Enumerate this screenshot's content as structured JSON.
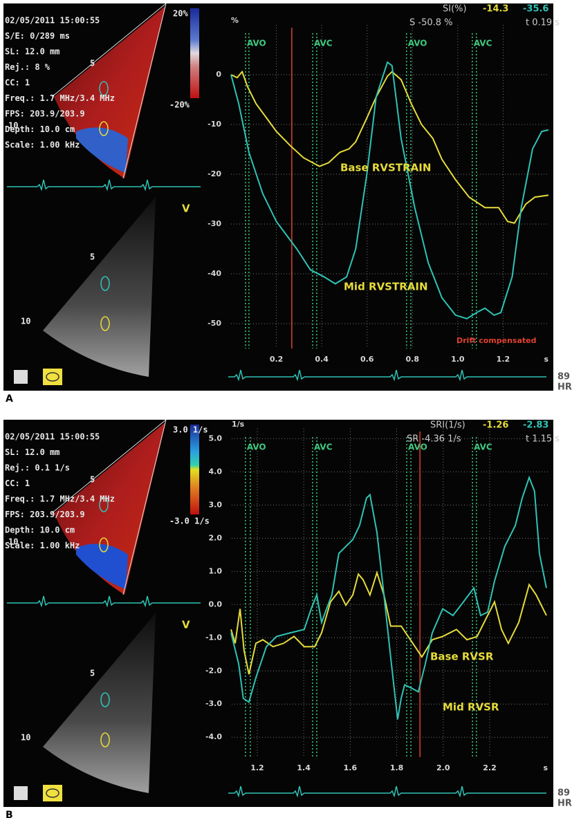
{
  "chart_data": [
    {
      "type": "line",
      "readout_title": "SI(%)",
      "readout_values": [
        -14.3,
        -35.6
      ],
      "readout_peak": "S -50.8 %",
      "readout_time": "t 0.19 s",
      "y_unit": "%",
      "x_unit": "s",
      "xlim": [
        0,
        1.4
      ],
      "ylim": [
        -55,
        10
      ],
      "xticks": [
        0.2,
        0.4,
        0.6,
        0.8,
        {
          "value": 1,
          "label": "1.0"
        },
        1.2
      ],
      "yticks": [
        0,
        -10,
        -20,
        -30,
        -40,
        -50
      ],
      "grid": true,
      "events": [
        {
          "label": "AVO",
          "x": [
            0.064,
            0.079
          ]
        },
        {
          "label": "AVC",
          "x": [
            0.36,
            0.378
          ]
        },
        {
          "label": "AVO",
          "x": [
            0.774,
            0.793
          ]
        },
        {
          "label": "AVC",
          "x": [
            1.064,
            1.082
          ]
        }
      ],
      "event_color": "#3fc880",
      "cursor_x": 0.268,
      "cursor_color": "#e04030",
      "annotations": [
        "Drift compensated"
      ],
      "series": [
        {
          "name": "Base RVSTRAIN",
          "color": "#e6dc3a",
          "x": [
            0,
            0.027,
            0.049,
            0.073,
            0.11,
            0.155,
            0.2,
            0.26,
            0.32,
            0.39,
            0.43,
            0.48,
            0.52,
            0.55,
            0.6,
            0.64,
            0.69,
            0.71,
            0.75,
            0.795,
            0.84,
            0.89,
            0.93,
            0.99,
            1.05,
            1.12,
            1.18,
            1.22,
            1.25,
            1.3,
            1.34,
            1.4
          ],
          "values": [
            0,
            -0.6,
            0.6,
            -2.4,
            -5.8,
            -8.6,
            -11.4,
            -14.2,
            -16.7,
            -18.4,
            -17.7,
            -15.6,
            -14.9,
            -13.5,
            -8.6,
            -4.5,
            -0.3,
            0.6,
            -1.0,
            -5.8,
            -10,
            -12.8,
            -17,
            -21.1,
            -24.6,
            -26.7,
            -26.7,
            -29.5,
            -29.8,
            -26,
            -24.6,
            -24.2
          ]
        },
        {
          "name": "Mid RVSTRAIN",
          "color": "#2ec4b6",
          "x": [
            0,
            0.034,
            0.079,
            0.14,
            0.2,
            0.29,
            0.35,
            0.41,
            0.46,
            0.51,
            0.55,
            0.6,
            0.64,
            0.69,
            0.71,
            0.75,
            0.81,
            0.87,
            0.93,
            0.99,
            1.04,
            1.09,
            1.12,
            1.16,
            1.19,
            1.24,
            1.28,
            1.33,
            1.37,
            1.4
          ],
          "values": [
            0,
            -5.8,
            -15.6,
            -23.9,
            -29.5,
            -35,
            -39.2,
            -40.6,
            -42,
            -40.6,
            -35,
            -19.7,
            -4.5,
            2.5,
            1.8,
            -12.8,
            -26.7,
            -37.8,
            -44.8,
            -48.3,
            -49,
            -47.6,
            -46.9,
            -48.3,
            -47.8,
            -40.6,
            -26.7,
            -14.9,
            -11.4,
            -11.1
          ]
        }
      ]
    },
    {
      "type": "line",
      "readout_title": "SRI(1/s)",
      "readout_values": [
        -1.26,
        -2.83
      ],
      "readout_peak": "SR -4.36 1/s",
      "readout_time": "t 1.15 s",
      "y_unit": "1/s",
      "x_unit": "s",
      "xlim": [
        1.09,
        2.45
      ],
      "ylim": [
        -4.6,
        5.3
      ],
      "xticks": [
        1.2,
        1.4,
        1.6,
        1.8,
        {
          "value": 2,
          "label": "2.0"
        },
        2.2
      ],
      "yticks": [
        {
          "value": 5,
          "label": "5.0"
        },
        {
          "value": 4,
          "label": "4.0"
        },
        {
          "value": 3,
          "label": "3.0"
        },
        {
          "value": 2,
          "label": "2.0"
        },
        {
          "value": 1,
          "label": "1.0"
        },
        {
          "value": 0,
          "label": "0.0"
        },
        {
          "value": -1,
          "label": "-1.0"
        },
        {
          "value": -2,
          "label": "-2.0"
        },
        {
          "value": -3,
          "label": "-3.0"
        },
        {
          "value": -4,
          "label": "-4.0"
        }
      ],
      "grid": true,
      "events": [
        {
          "label": "AVO",
          "x": [
            1.149,
            1.17
          ]
        },
        {
          "label": "AVC",
          "x": [
            1.438,
            1.456
          ]
        },
        {
          "label": "AVO",
          "x": [
            1.843,
            1.861
          ]
        },
        {
          "label": "AVC",
          "x": [
            2.126,
            2.143
          ]
        }
      ],
      "event_color": "#3fc880",
      "cursor_x": 1.9,
      "cursor_color": "#e04030",
      "annotations": [],
      "series": [
        {
          "name": "Base RVSR",
          "color": "#e6dc3a",
          "x": [
            1.087,
            1.105,
            1.126,
            1.143,
            1.164,
            1.194,
            1.224,
            1.268,
            1.313,
            1.358,
            1.402,
            1.447,
            1.477,
            1.515,
            1.551,
            1.581,
            1.611,
            1.635,
            1.655,
            1.685,
            1.715,
            1.745,
            1.774,
            1.819,
            1.879,
            1.908,
            1.953,
            1.998,
            2.057,
            2.102,
            2.146,
            2.191,
            2.221,
            2.251,
            2.28,
            2.325,
            2.37,
            2.4,
            2.444
          ],
          "values": [
            -0.75,
            -1.17,
            -0.13,
            -1.38,
            -2.1,
            -1.17,
            -1.06,
            -1.27,
            -1.17,
            -0.96,
            -1.27,
            -1.27,
            -0.85,
            0.08,
            0.4,
            -0.02,
            0.29,
            0.92,
            0.75,
            0.29,
            0.96,
            0.29,
            -0.65,
            -0.65,
            -1.27,
            -1.58,
            -1.06,
            -0.96,
            -0.75,
            -1.06,
            -0.96,
            -0.33,
            0.08,
            -0.75,
            -1.17,
            -0.54,
            0.6,
            0.29,
            -0.33
          ]
        },
        {
          "name": "Mid RVSR",
          "color": "#2ec4b6",
          "x": [
            1.087,
            1.12,
            1.14,
            1.164,
            1.194,
            1.239,
            1.283,
            1.343,
            1.402,
            1.432,
            1.456,
            1.477,
            1.498,
            1.521,
            1.551,
            1.581,
            1.611,
            1.64,
            1.67,
            1.685,
            1.715,
            1.745,
            1.774,
            1.804,
            1.819,
            1.834,
            1.864,
            1.893,
            1.923,
            1.953,
            1.998,
            2.042,
            2.087,
            2.132,
            2.161,
            2.191,
            2.221,
            2.265,
            2.31,
            2.34,
            2.37,
            2.393,
            2.414,
            2.444
          ],
          "values": [
            -0.85,
            -1.79,
            -2.83,
            -2.94,
            -2.21,
            -1.27,
            -0.96,
            -0.85,
            -0.75,
            -0.13,
            0.29,
            -0.54,
            -0.13,
            0.29,
            1.54,
            1.75,
            1.96,
            2.38,
            3.21,
            3.31,
            2.17,
            0.29,
            -1.58,
            -3.46,
            -2.83,
            -2.42,
            -2.52,
            -2.63,
            -1.79,
            -0.85,
            -0.13,
            -0.33,
            0.08,
            0.5,
            -0.33,
            -0.23,
            0.71,
            1.75,
            2.38,
            3.21,
            3.83,
            3.42,
            1.54,
            0.5
          ]
        }
      ]
    }
  ],
  "panels": [
    {
      "label": "A",
      "overlay": [
        "02/05/2011 15:00:55",
        "S/E: 0/289 ms",
        "SL: 12.0 mm",
        "Rej.: 8 %",
        "CC: 1",
        "Freq.: 1.7 MHz/3.4 MHz",
        "FPS: 203.9/203.9",
        "Depth: 10.0 cm",
        "Scale: 1.00 kHz"
      ],
      "color_scale": [
        "20%",
        "-20%"
      ],
      "depth_marks": [
        "5",
        "10",
        "5",
        "10"
      ],
      "view": "V",
      "hr": [
        "89",
        "HR"
      ]
    },
    {
      "label": "B",
      "overlay": [
        "02/05/2011 15:00:55",
        "SL: 12.0 mm",
        "Rej.: 0.1 1/s",
        "CC: 1",
        "Freq.: 1.7 MHz/3.4 MHz",
        "FPS: 203.9/203.9",
        "Depth: 10.0 cm",
        "Scale: 1.00 kHz"
      ],
      "color_scale": [
        "3.0 1/s",
        "-3.0 1/s"
      ],
      "depth_marks": [
        "5",
        "10",
        "5",
        "10"
      ],
      "view": "V",
      "hr": [
        "89",
        "HR"
      ]
    }
  ]
}
